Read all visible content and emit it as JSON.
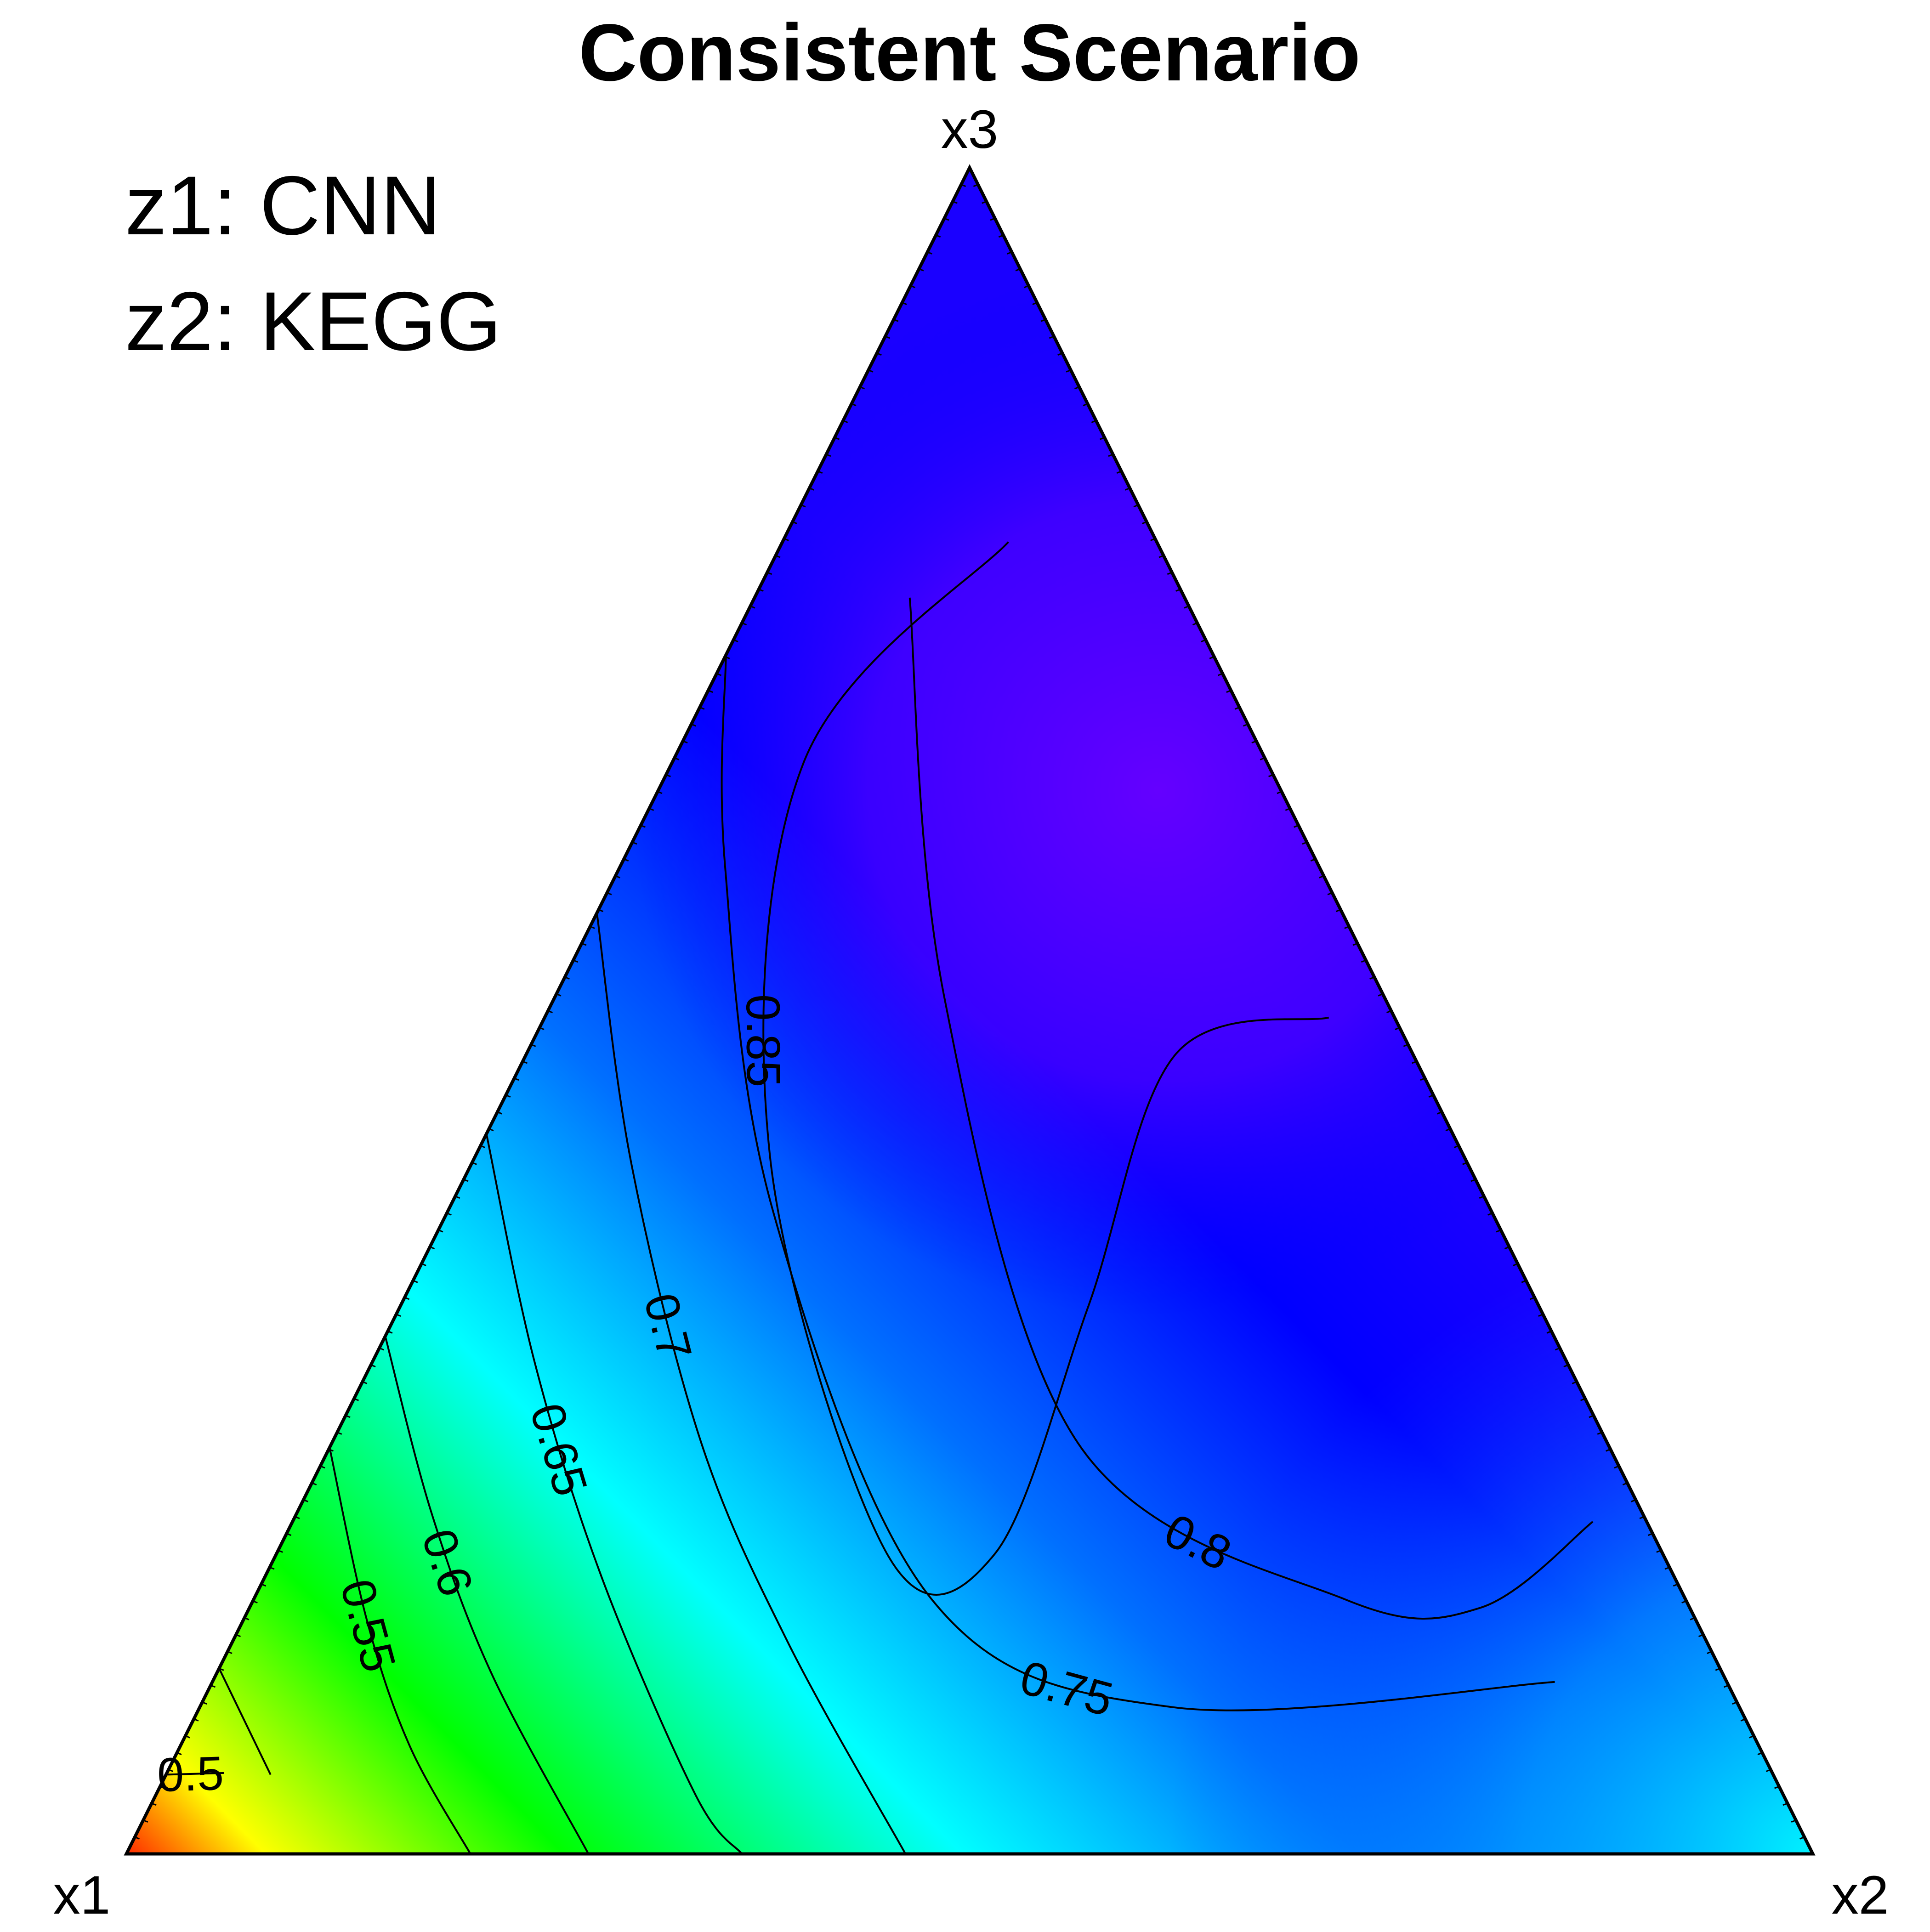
{
  "chart_data": {
    "type": "heatmap",
    "subtype": "ternary contour",
    "title": "Consistent Scenario",
    "vertices": [
      "x1",
      "x2",
      "x3"
    ],
    "annotations": [
      "z1: CNN",
      "z2: KEGG"
    ],
    "colorscale": [
      "#ff0000",
      "#ffff00",
      "#00ff00",
      "#00ffff",
      "#0000ff",
      "#6a00ff"
    ],
    "grid": false,
    "legend": "none",
    "contour_levels": [
      {
        "level": 0.5,
        "label": "0.5",
        "line": [
          [
            0.953,
            0.0,
            0.047
          ],
          [
            0.918,
            0.034,
            0.048
          ]
        ]
      },
      {
        "level": 0.5,
        "label": "",
        "line": [
          [
            0.891,
            0.062,
            0.047
          ],
          [
            0.89,
            0.0,
            0.11
          ]
        ]
      },
      {
        "level": 0.55,
        "label": "0.55",
        "line": [
          [
            0.759,
            0.0,
            0.241
          ],
          [
            0.788,
            0.073,
            0.139
          ],
          [
            0.8,
            0.136,
            0.064
          ],
          [
            0.796,
            0.204,
            0.0
          ]
        ]
      },
      {
        "level": 0.6,
        "label": "0.6",
        "line": [
          [
            0.693,
            0.0,
            0.307
          ],
          [
            0.718,
            0.08,
            0.202
          ],
          [
            0.73,
            0.163,
            0.107
          ],
          [
            0.726,
            0.274,
            0.0
          ]
        ]
      },
      {
        "level": 0.65,
        "label": "0.65",
        "line": [
          [
            0.573,
            0.0,
            0.427
          ],
          [
            0.612,
            0.096,
            0.292
          ],
          [
            0.636,
            0.199,
            0.165
          ],
          [
            0.645,
            0.32,
            0.035
          ],
          [
            0.635,
            0.365,
            0.0
          ]
        ]
      },
      {
        "level": 0.7,
        "label": "0.7",
        "line": [
          [
            0.442,
            0.0,
            0.558
          ],
          [
            0.496,
            0.095,
            0.409
          ],
          [
            0.537,
            0.218,
            0.245
          ],
          [
            0.545,
            0.329,
            0.126
          ],
          [
            0.538,
            0.462,
            0.0
          ]
        ]
      },
      {
        "level": 0.75,
        "label": "0.75",
        "line": [
          [
            0.289,
            0.0,
            0.711
          ],
          [
            0.352,
            0.062,
            0.586
          ],
          [
            0.426,
            0.193,
            0.381
          ],
          [
            0.447,
            0.402,
            0.151
          ],
          [
            0.336,
            0.577,
            0.087
          ],
          [
            0.102,
            0.796,
            0.102
          ]
        ]
      },
      {
        "level": 0.8,
        "label": "0.8",
        "line": [
          [
            0.163,
            0.092,
            0.745
          ],
          [
            0.261,
            0.231,
            0.508
          ],
          [
            0.314,
            0.442,
            0.244
          ],
          [
            0.202,
            0.647,
            0.151
          ],
          [
            0.124,
            0.73,
            0.146
          ],
          [
            0.032,
            0.771,
            0.197
          ]
        ]
      },
      {
        "level": 0.85,
        "label": "0.85",
        "line": [
          [
            0.039,
            0.465,
            0.496
          ],
          [
            0.141,
            0.385,
            0.474
          ],
          [
            0.267,
            0.408,
            0.325
          ],
          [
            0.396,
            0.426,
            0.178
          ],
          [
            0.46,
            0.362,
            0.178
          ],
          [
            0.411,
            0.174,
            0.415
          ],
          [
            0.275,
            0.078,
            0.647
          ],
          [
            0.088,
            0.134,
            0.778
          ]
        ]
      }
    ]
  }
}
